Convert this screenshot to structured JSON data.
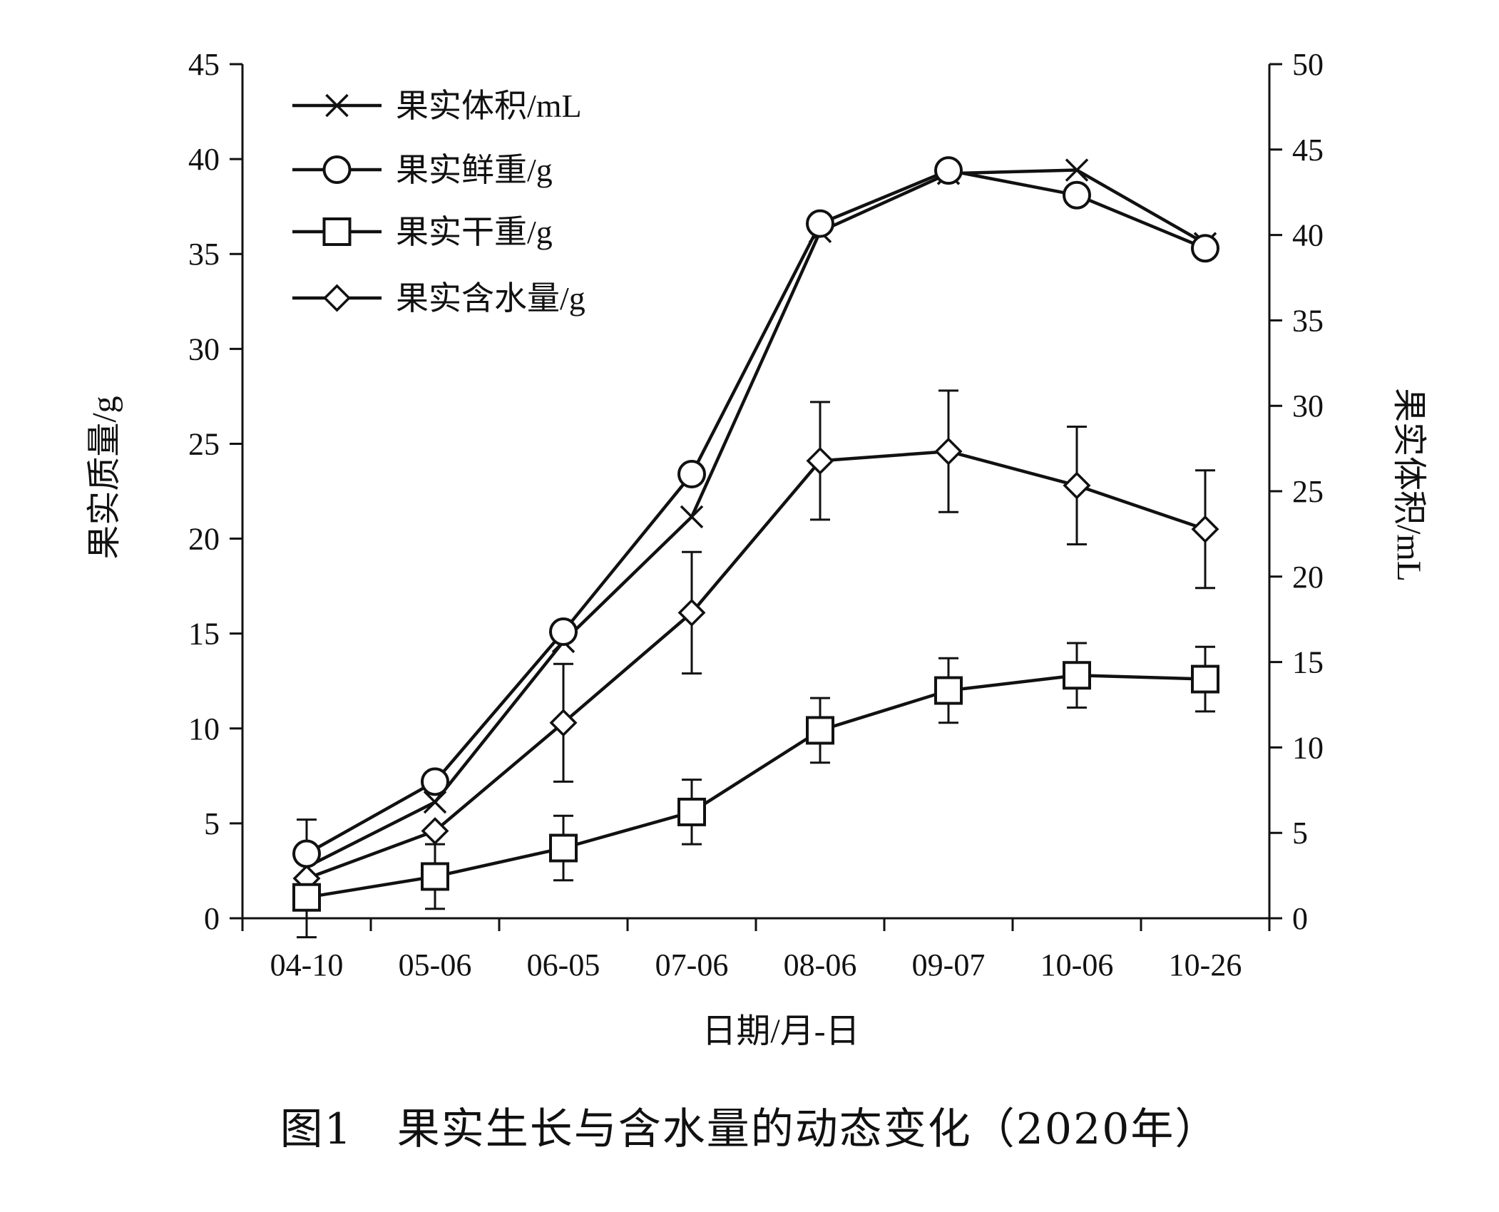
{
  "caption": "图1　果实生长与含水量的动态变化（2020年）",
  "chart_data": {
    "type": "line",
    "title": "",
    "xlabel": "日期/月-日",
    "ylabel_left": "果实质量/g",
    "ylabel_right": "果实体积/mL",
    "categories": [
      "04-10",
      "05-06",
      "06-05",
      "07-06",
      "08-06",
      "09-07",
      "10-06",
      "10-26"
    ],
    "ylim_left": [
      0,
      45
    ],
    "yticks_left": [
      0,
      5,
      10,
      15,
      20,
      25,
      30,
      35,
      40,
      45
    ],
    "ylim_right": [
      0,
      50
    ],
    "yticks_right": [
      0,
      5,
      10,
      15,
      20,
      25,
      30,
      35,
      40,
      45,
      50
    ],
    "grid": false,
    "legend_position": "top-left",
    "series": [
      {
        "name": "果实体积/mL",
        "marker": "x",
        "axis": "right",
        "values": [
          3.0,
          6.8,
          16.2,
          23.5,
          40.2,
          43.6,
          43.8,
          39.5
        ]
      },
      {
        "name": "果实鲜重/g",
        "marker": "circle",
        "axis": "left",
        "values": [
          3.4,
          7.2,
          15.1,
          23.4,
          36.6,
          39.4,
          38.1,
          35.3
        ]
      },
      {
        "name": "果实干重/g",
        "marker": "square",
        "axis": "left",
        "values": [
          1.1,
          2.2,
          3.7,
          5.6,
          9.9,
          12.0,
          12.8,
          12.6
        ],
        "error": [
          0.0,
          1.7,
          1.7,
          1.7,
          1.7,
          1.7,
          1.7,
          1.7
        ]
      },
      {
        "name": "果实含水量/g",
        "marker": "diamond",
        "axis": "left",
        "values": [
          2.1,
          4.6,
          10.3,
          16.1,
          24.1,
          24.6,
          22.8,
          20.5
        ],
        "error": [
          3.1,
          0.0,
          3.1,
          3.2,
          3.1,
          3.2,
          3.1,
          3.1
        ]
      }
    ]
  }
}
